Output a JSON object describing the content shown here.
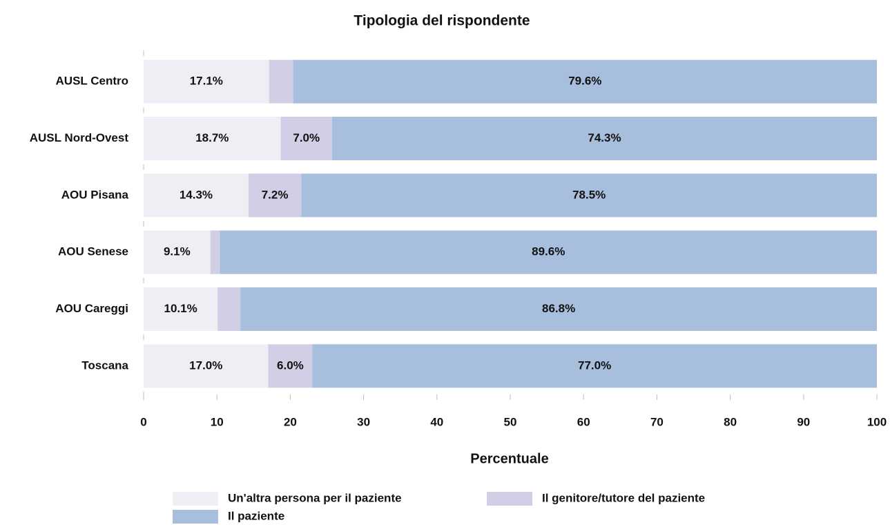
{
  "chart_data": {
    "type": "stacked_barh",
    "title": "Tipologia del rispondente",
    "xlabel": "Percentuale",
    "categories": [
      "AUSL Centro",
      "AUSL Nord-Ovest",
      "AOU Pisana",
      "AOU Senese",
      "AOU Careggi",
      "Toscana"
    ],
    "series": [
      {
        "name": "Un'altra persona per il paziente",
        "color": "#f0eef5",
        "values": [
          17.1,
          18.7,
          14.3,
          9.1,
          10.1,
          17.0
        ],
        "value_labels": [
          "17.1%",
          "18.7%",
          "14.3%",
          "9.1%",
          "10.1%",
          "17.0%"
        ]
      },
      {
        "name": "Il genitore/tutore del paziente",
        "color": "#d0cfe6",
        "values": [
          3.3,
          7.0,
          7.2,
          1.3,
          3.1,
          6.0
        ],
        "value_labels": [
          null,
          "7.0%",
          "7.2%",
          null,
          null,
          "6.0%"
        ]
      },
      {
        "name": "Il paziente",
        "color": "#a8bedd",
        "values": [
          79.6,
          74.3,
          78.5,
          89.6,
          86.8,
          77.0
        ],
        "value_labels": [
          "79.6%",
          "74.3%",
          "78.5%",
          "89.6%",
          "86.8%",
          "77.0%"
        ]
      }
    ],
    "xlim": [
      0,
      100
    ],
    "xticks": [
      0,
      10,
      20,
      30,
      40,
      50,
      60,
      70,
      80,
      90,
      100
    ]
  }
}
